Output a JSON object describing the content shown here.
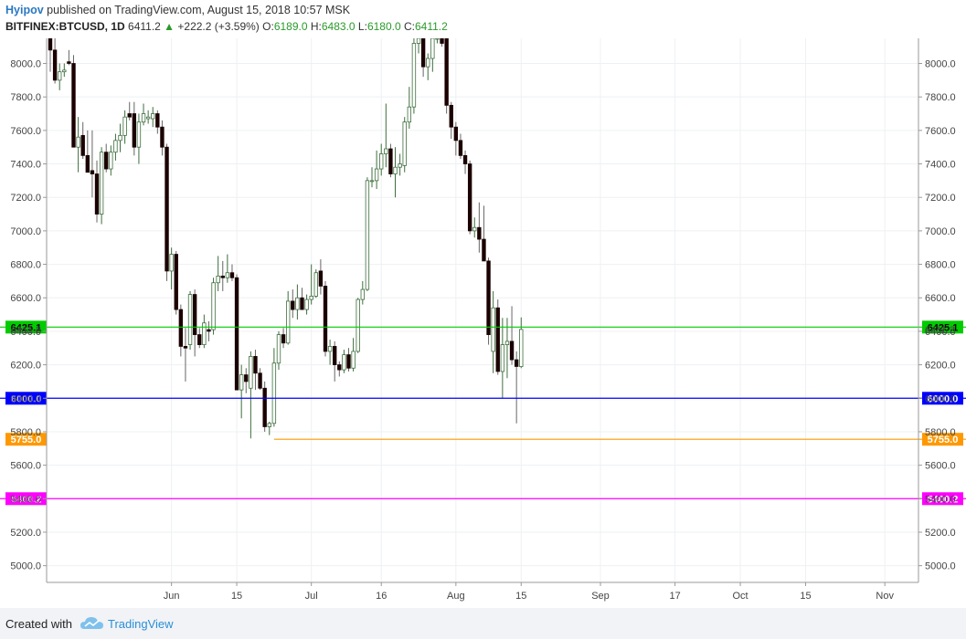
{
  "header": {
    "author": "Hyipov",
    "published": "published on TradingView.com, August 15, 2018 10:57 MSK",
    "symbol": "BITFINEX:BTCUSD, 1D",
    "last": "6411.2",
    "change": "+222.2 (+3.59%)",
    "open_label": "O:",
    "open": "6189.0",
    "high_label": "H:",
    "high": "6483.0",
    "low_label": "L:",
    "low": "6180.0",
    "close_label": "C:",
    "close": "6411.2"
  },
  "footer": {
    "created_with": "Created with",
    "brand": "TradingView"
  },
  "colors": {
    "up_body": "#ffffff",
    "down_body": "#1b0000",
    "up_border": "#3d6e3d",
    "wick": "#666666",
    "grid": "#eef0f3"
  },
  "chart_data": {
    "type": "candlestick",
    "ylim": [
      4900,
      8150
    ],
    "y_ticks": [
      "5000.0",
      "5200.0",
      "5400.0",
      "5600.0",
      "5800.0",
      "6000.0",
      "6200.0",
      "6400.0",
      "6600.0",
      "6800.0",
      "7000.0",
      "7200.0",
      "7400.0",
      "7600.0",
      "7800.0",
      "8000.0"
    ],
    "x_range": [
      "2018-05-06",
      "2018-11-09"
    ],
    "x_ticks": [
      {
        "date": "2018-06-01",
        "label": "Jun"
      },
      {
        "date": "2018-06-15",
        "label": "15"
      },
      {
        "date": "2018-07-01",
        "label": "Jul"
      },
      {
        "date": "2018-07-16",
        "label": "16"
      },
      {
        "date": "2018-08-01",
        "label": "Aug"
      },
      {
        "date": "2018-08-15",
        "label": "15"
      },
      {
        "date": "2018-09-01",
        "label": "Sep"
      },
      {
        "date": "2018-09-17",
        "label": "17"
      },
      {
        "date": "2018-10-01",
        "label": "Oct"
      },
      {
        "date": "2018-10-15",
        "label": "15"
      },
      {
        "date": "2018-11-01",
        "label": "Nov"
      }
    ],
    "last_price_label": "6411.2",
    "last_price": 6411.2,
    "levels": [
      {
        "value": 6425.1,
        "label": "6425.1",
        "color": "#00cc00",
        "start": "2018-05-06"
      },
      {
        "value": 6000.0,
        "label": "6000.0",
        "color": "#0000ff",
        "start": "2018-05-06"
      },
      {
        "value": 5755.0,
        "label": "5755.0",
        "color": "#ff9800",
        "start": "2018-06-23"
      },
      {
        "value": 5400.2,
        "label": "5400.2",
        "color": "#ff00ff",
        "start": "2018-05-06"
      }
    ],
    "candles": [
      {
        "d": "2018-05-06",
        "o": 8150,
        "h": 8200,
        "l": 7950,
        "c": 8080
      },
      {
        "d": "2018-05-07",
        "o": 8080,
        "h": 8150,
        "l": 7880,
        "c": 7900
      },
      {
        "d": "2018-05-08",
        "o": 7900,
        "h": 8000,
        "l": 7840,
        "c": 7950
      },
      {
        "d": "2018-05-09",
        "o": 7950,
        "h": 8000,
        "l": 7920,
        "c": 7960
      },
      {
        "d": "2018-05-10",
        "o": 8010,
        "h": 8080,
        "l": 7990,
        "c": 8000
      },
      {
        "d": "2018-05-11",
        "o": 8000,
        "h": 8050,
        "l": 7500,
        "c": 7500
      },
      {
        "d": "2018-05-12",
        "o": 7500,
        "h": 7680,
        "l": 7350,
        "c": 7560
      },
      {
        "d": "2018-05-13",
        "o": 7570,
        "h": 7650,
        "l": 7430,
        "c": 7450
      },
      {
        "d": "2018-05-14",
        "o": 7450,
        "h": 7600,
        "l": 7350,
        "c": 7350
      },
      {
        "d": "2018-05-15",
        "o": 7360,
        "h": 7600,
        "l": 7200,
        "c": 7340
      },
      {
        "d": "2018-05-16",
        "o": 7340,
        "h": 7420,
        "l": 7050,
        "c": 7100
      },
      {
        "d": "2018-05-17",
        "o": 7100,
        "h": 7500,
        "l": 7040,
        "c": 7470
      },
      {
        "d": "2018-05-18",
        "o": 7470,
        "h": 7520,
        "l": 7350,
        "c": 7370
      },
      {
        "d": "2018-05-19",
        "o": 7370,
        "h": 7510,
        "l": 7330,
        "c": 7470
      },
      {
        "d": "2018-05-20",
        "o": 7470,
        "h": 7580,
        "l": 7420,
        "c": 7540
      },
      {
        "d": "2018-05-21",
        "o": 7540,
        "h": 7640,
        "l": 7470,
        "c": 7570
      },
      {
        "d": "2018-05-22",
        "o": 7570,
        "h": 7720,
        "l": 7520,
        "c": 7680
      },
      {
        "d": "2018-05-23",
        "o": 7700,
        "h": 7770,
        "l": 7660,
        "c": 7680
      },
      {
        "d": "2018-05-24",
        "o": 7700,
        "h": 7770,
        "l": 7450,
        "c": 7500
      },
      {
        "d": "2018-05-25",
        "o": 7500,
        "h": 7700,
        "l": 7400,
        "c": 7650
      },
      {
        "d": "2018-05-26",
        "o": 7650,
        "h": 7760,
        "l": 7630,
        "c": 7700
      },
      {
        "d": "2018-05-27",
        "o": 7670,
        "h": 7720,
        "l": 7640,
        "c": 7680
      },
      {
        "d": "2018-05-28",
        "o": 7670,
        "h": 7740,
        "l": 7620,
        "c": 7700
      },
      {
        "d": "2018-05-29",
        "o": 7700,
        "h": 7720,
        "l": 7580,
        "c": 7620
      },
      {
        "d": "2018-05-30",
        "o": 7620,
        "h": 7660,
        "l": 7450,
        "c": 7500
      },
      {
        "d": "2018-05-31",
        "o": 7500,
        "h": 7520,
        "l": 6700,
        "c": 6760
      },
      {
        "d": "2018-06-01",
        "o": 6760,
        "h": 6900,
        "l": 6650,
        "c": 6860
      },
      {
        "d": "2018-06-02",
        "o": 6860,
        "h": 6880,
        "l": 6500,
        "c": 6530
      },
      {
        "d": "2018-06-03",
        "o": 6530,
        "h": 6560,
        "l": 6250,
        "c": 6310
      },
      {
        "d": "2018-06-04",
        "o": 6310,
        "h": 6420,
        "l": 6100,
        "c": 6300
      },
      {
        "d": "2018-06-05",
        "o": 6320,
        "h": 6640,
        "l": 6290,
        "c": 6620
      },
      {
        "d": "2018-06-06",
        "o": 6620,
        "h": 6650,
        "l": 6250,
        "c": 6380
      },
      {
        "d": "2018-06-07",
        "o": 6380,
        "h": 6420,
        "l": 6300,
        "c": 6320
      },
      {
        "d": "2018-06-08",
        "o": 6320,
        "h": 6500,
        "l": 6300,
        "c": 6450
      },
      {
        "d": "2018-06-09",
        "o": 6410,
        "h": 6460,
        "l": 6340,
        "c": 6400
      },
      {
        "d": "2018-06-10",
        "o": 6410,
        "h": 6720,
        "l": 6380,
        "c": 6690
      },
      {
        "d": "2018-06-11",
        "o": 6690,
        "h": 6850,
        "l": 6640,
        "c": 6730
      },
      {
        "d": "2018-06-12",
        "o": 6730,
        "h": 6820,
        "l": 6640,
        "c": 6720
      },
      {
        "d": "2018-06-13",
        "o": 6720,
        "h": 6860,
        "l": 6690,
        "c": 6750
      },
      {
        "d": "2018-06-14",
        "o": 6750,
        "h": 6800,
        "l": 6700,
        "c": 6720
      },
      {
        "d": "2018-06-15",
        "o": 6720,
        "h": 6740,
        "l": 6050,
        "c": 6050
      },
      {
        "d": "2018-06-16",
        "o": 6050,
        "h": 6200,
        "l": 5880,
        "c": 6140
      },
      {
        "d": "2018-06-17",
        "o": 6140,
        "h": 6180,
        "l": 6030,
        "c": 6100
      },
      {
        "d": "2018-06-18",
        "o": 6060,
        "h": 6280,
        "l": 5760,
        "c": 6250
      },
      {
        "d": "2018-06-19",
        "o": 6250,
        "h": 6290,
        "l": 6050,
        "c": 6150
      },
      {
        "d": "2018-06-20",
        "o": 6150,
        "h": 6180,
        "l": 6050,
        "c": 6060
      },
      {
        "d": "2018-06-21",
        "o": 6060,
        "h": 6100,
        "l": 5800,
        "c": 5830
      },
      {
        "d": "2018-06-22",
        "o": 5830,
        "h": 5860,
        "l": 5780,
        "c": 5850
      },
      {
        "d": "2018-06-23",
        "o": 5850,
        "h": 6300,
        "l": 5830,
        "c": 6210
      },
      {
        "d": "2018-06-24",
        "o": 6210,
        "h": 6400,
        "l": 6170,
        "c": 6380
      },
      {
        "d": "2018-06-25",
        "o": 6380,
        "h": 6420,
        "l": 6300,
        "c": 6330
      },
      {
        "d": "2018-06-26",
        "o": 6330,
        "h": 6640,
        "l": 6320,
        "c": 6580
      },
      {
        "d": "2018-06-27",
        "o": 6580,
        "h": 6650,
        "l": 6480,
        "c": 6530
      },
      {
        "d": "2018-06-28",
        "o": 6530,
        "h": 6680,
        "l": 6470,
        "c": 6600
      },
      {
        "d": "2018-06-29",
        "o": 6600,
        "h": 6660,
        "l": 6530,
        "c": 6530
      },
      {
        "d": "2018-06-30",
        "o": 6530,
        "h": 6620,
        "l": 6500,
        "c": 6590
      },
      {
        "d": "2018-07-01",
        "o": 6590,
        "h": 6800,
        "l": 6560,
        "c": 6610
      },
      {
        "d": "2018-07-02",
        "o": 6610,
        "h": 6770,
        "l": 6600,
        "c": 6750
      },
      {
        "d": "2018-07-03",
        "o": 6760,
        "h": 6830,
        "l": 6620,
        "c": 6670
      },
      {
        "d": "2018-07-04",
        "o": 6670,
        "h": 6700,
        "l": 6250,
        "c": 6280
      },
      {
        "d": "2018-07-05",
        "o": 6280,
        "h": 6350,
        "l": 6200,
        "c": 6310
      },
      {
        "d": "2018-07-06",
        "o": 6310,
        "h": 6340,
        "l": 6100,
        "c": 6200
      },
      {
        "d": "2018-07-07",
        "o": 6200,
        "h": 6220,
        "l": 6130,
        "c": 6170
      },
      {
        "d": "2018-07-08",
        "o": 6170,
        "h": 6290,
        "l": 6150,
        "c": 6260
      },
      {
        "d": "2018-07-09",
        "o": 6260,
        "h": 6300,
        "l": 6160,
        "c": 6180
      },
      {
        "d": "2018-07-10",
        "o": 6180,
        "h": 6360,
        "l": 6160,
        "c": 6280
      },
      {
        "d": "2018-07-11",
        "o": 6280,
        "h": 6600,
        "l": 6270,
        "c": 6590
      },
      {
        "d": "2018-07-12",
        "o": 6590,
        "h": 6700,
        "l": 6560,
        "c": 6650
      },
      {
        "d": "2018-07-13",
        "o": 6650,
        "h": 7320,
        "l": 6640,
        "c": 7300
      },
      {
        "d": "2018-07-14",
        "o": 7300,
        "h": 7380,
        "l": 7260,
        "c": 7300
      },
      {
        "d": "2018-07-15",
        "o": 7300,
        "h": 7480,
        "l": 7250,
        "c": 7370
      },
      {
        "d": "2018-07-16",
        "o": 7370,
        "h": 7520,
        "l": 7330,
        "c": 7460
      },
      {
        "d": "2018-07-17",
        "o": 7460,
        "h": 7760,
        "l": 7380,
        "c": 7490
      },
      {
        "d": "2018-07-18",
        "o": 7490,
        "h": 7520,
        "l": 7320,
        "c": 7340
      },
      {
        "d": "2018-07-19",
        "o": 7340,
        "h": 7500,
        "l": 7200,
        "c": 7380
      },
      {
        "d": "2018-07-20",
        "o": 7380,
        "h": 7460,
        "l": 7330,
        "c": 7400
      },
      {
        "d": "2018-07-21",
        "o": 7390,
        "h": 7680,
        "l": 7350,
        "c": 7650
      },
      {
        "d": "2018-07-22",
        "o": 7650,
        "h": 7860,
        "l": 7610,
        "c": 7740
      },
      {
        "d": "2018-07-23",
        "o": 7740,
        "h": 8160,
        "l": 7700,
        "c": 8120
      },
      {
        "d": "2018-07-24",
        "o": 8120,
        "h": 8200,
        "l": 8060,
        "c": 8150
      },
      {
        "d": "2018-07-25",
        "o": 8150,
        "h": 8200,
        "l": 7920,
        "c": 7980
      },
      {
        "d": "2018-07-26",
        "o": 7980,
        "h": 8060,
        "l": 7900,
        "c": 8030
      },
      {
        "d": "2018-07-27",
        "o": 8030,
        "h": 8150,
        "l": 7950,
        "c": 8150
      },
      {
        "d": "2018-07-28",
        "o": 8150,
        "h": 8200,
        "l": 8120,
        "c": 8150
      },
      {
        "d": "2018-07-29",
        "o": 8150,
        "h": 8180,
        "l": 8100,
        "c": 8120
      },
      {
        "d": "2018-07-30",
        "o": 8150,
        "h": 8200,
        "l": 7700,
        "c": 7750
      },
      {
        "d": "2018-07-31",
        "o": 7750,
        "h": 7770,
        "l": 7550,
        "c": 7620
      },
      {
        "d": "2018-08-01",
        "o": 7620,
        "h": 7650,
        "l": 7450,
        "c": 7540
      },
      {
        "d": "2018-08-02",
        "o": 7540,
        "h": 7580,
        "l": 7430,
        "c": 7450
      },
      {
        "d": "2018-08-03",
        "o": 7450,
        "h": 7480,
        "l": 7340,
        "c": 7400
      },
      {
        "d": "2018-08-04",
        "o": 7400,
        "h": 7420,
        "l": 6980,
        "c": 7000
      },
      {
        "d": "2018-08-05",
        "o": 7000,
        "h": 7080,
        "l": 6960,
        "c": 7020
      },
      {
        "d": "2018-08-06",
        "o": 7020,
        "h": 7170,
        "l": 6870,
        "c": 6950
      },
      {
        "d": "2018-08-07",
        "o": 6950,
        "h": 7150,
        "l": 6830,
        "c": 6820
      },
      {
        "d": "2018-08-08",
        "o": 6820,
        "h": 6840,
        "l": 6320,
        "c": 6380
      },
      {
        "d": "2018-08-09",
        "o": 6280,
        "h": 6640,
        "l": 6150,
        "c": 6540
      },
      {
        "d": "2018-08-10",
        "o": 6540,
        "h": 6590,
        "l": 6140,
        "c": 6160
      },
      {
        "d": "2018-08-11",
        "o": 6160,
        "h": 6480,
        "l": 6000,
        "c": 6320
      },
      {
        "d": "2018-08-12",
        "o": 6320,
        "h": 6480,
        "l": 6120,
        "c": 6340
      },
      {
        "d": "2018-08-13",
        "o": 6340,
        "h": 6550,
        "l": 6200,
        "c": 6230
      },
      {
        "d": "2018-08-14",
        "o": 6230,
        "h": 6280,
        "l": 5850,
        "c": 6190
      },
      {
        "d": "2018-08-15",
        "o": 6189,
        "h": 6483,
        "l": 6180,
        "c": 6411.2
      }
    ]
  }
}
